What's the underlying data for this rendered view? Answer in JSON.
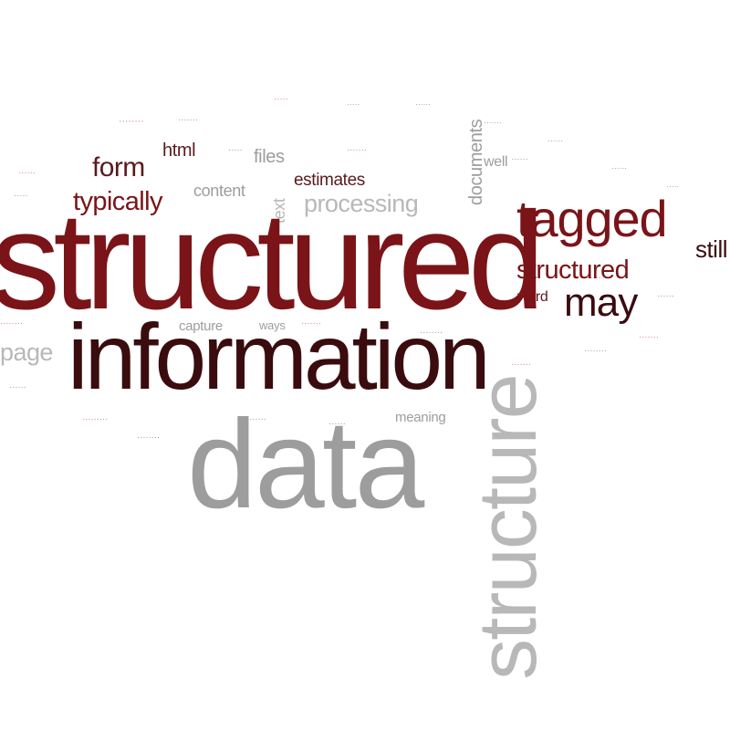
{
  "words": {
    "structured": "structured",
    "information": "information",
    "data": "data",
    "structure": "structure",
    "tagged": "tagged",
    "structured_small": "structured",
    "may": "may",
    "typically": "typically",
    "form": "form",
    "processing": "processing",
    "documents": "documents",
    "html": "html",
    "files": "files",
    "estimates": "estimates",
    "content": "content",
    "capture": "capture",
    "meaning": "meaning",
    "word": "word",
    "well": "well",
    "page": "page",
    "still": "still",
    "text": "text",
    "ways": "ways"
  },
  "colors": {
    "dark_red": "#7a1418",
    "near_black": "#3a0c0e",
    "grey": "#9d9d9d",
    "light_grey": "#b8b8b8"
  }
}
